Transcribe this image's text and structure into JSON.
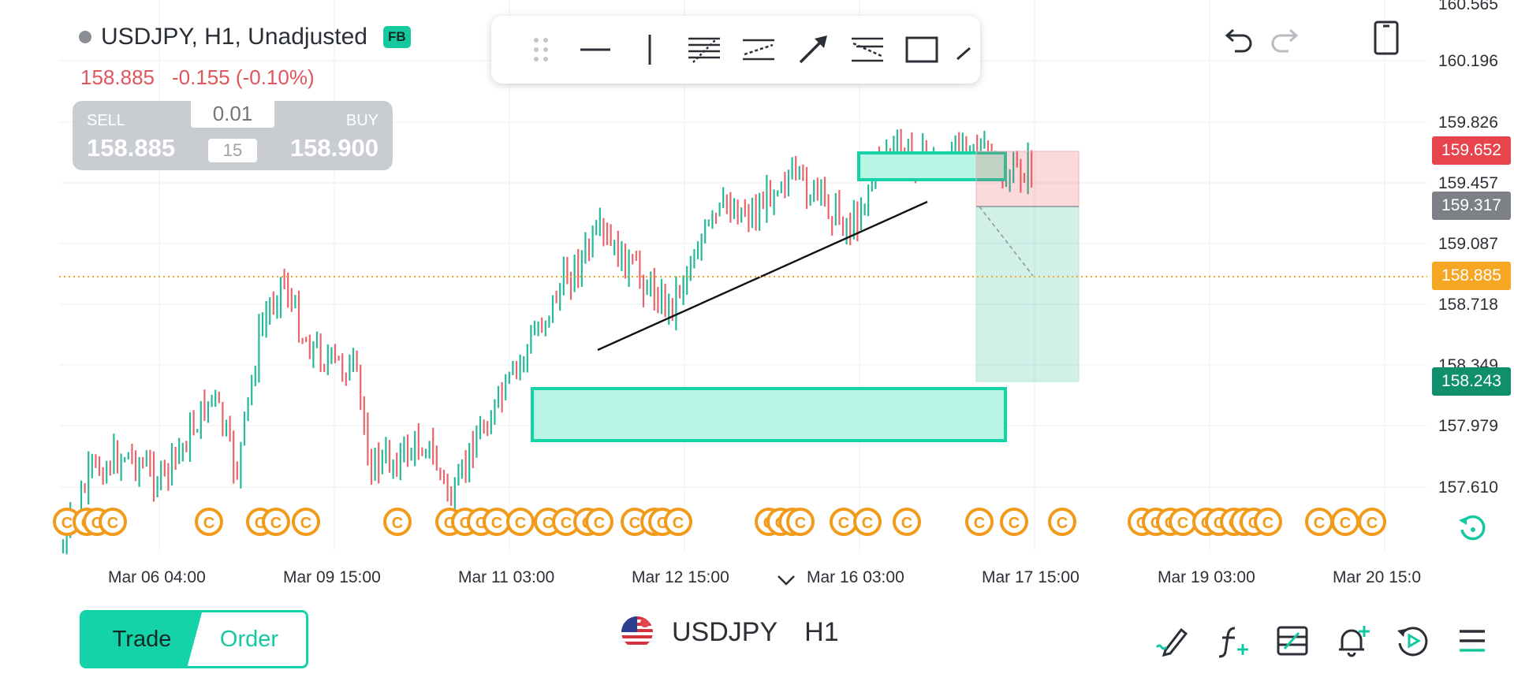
{
  "header": {
    "symbol_title": "USDJPY, H1, Unadjusted",
    "badge": "FB",
    "last_price": "158.885",
    "change": "-0.155 (-0.10%)"
  },
  "trade_panel": {
    "sell_label": "SELL",
    "sell_price": "158.885",
    "buy_label": "BUY",
    "buy_price": "158.900",
    "lot_placeholder": "0.01",
    "spread": "15"
  },
  "drawing_toolbar": {
    "tools": [
      "drag-handle-icon",
      "horizontal-line-icon",
      "vertical-line-icon",
      "fib-retracement-icon",
      "parallel-channel-icon",
      "arrow-icon",
      "fib-extension-icon",
      "rectangle-icon",
      "trend-line-icon"
    ]
  },
  "price_axis": {
    "labels": [
      "160.565",
      "160.196",
      "159.826",
      "159.457",
      "159.087",
      "158.718",
      "158.349",
      "157.979",
      "157.610"
    ],
    "tags": [
      {
        "value": "159.652",
        "color": "#e8444d"
      },
      {
        "value": "159.317",
        "color": "#7d8087"
      },
      {
        "value": "158.885",
        "color": "#f6a623"
      },
      {
        "value": "158.243",
        "color": "#0f8f6b"
      }
    ]
  },
  "time_axis": {
    "labels": [
      "Mar 06 04:00",
      "Mar 09 15:00",
      "Mar 11 03:00",
      "Mar 12 15:00",
      "Mar 16 03:00",
      "Mar 17 15:00",
      "Mar 19 03:00",
      "Mar 20 15:0"
    ]
  },
  "events_marker": "C",
  "bottom_bar": {
    "trade_tab": "Trade",
    "order_tab": "Order",
    "symbol": "USDJPY",
    "timeframe": "H1"
  },
  "colors": {
    "up": "#26b89a",
    "down": "#e8656b",
    "zone": "#14d3a8",
    "current_price_line": "#f6a623"
  }
}
